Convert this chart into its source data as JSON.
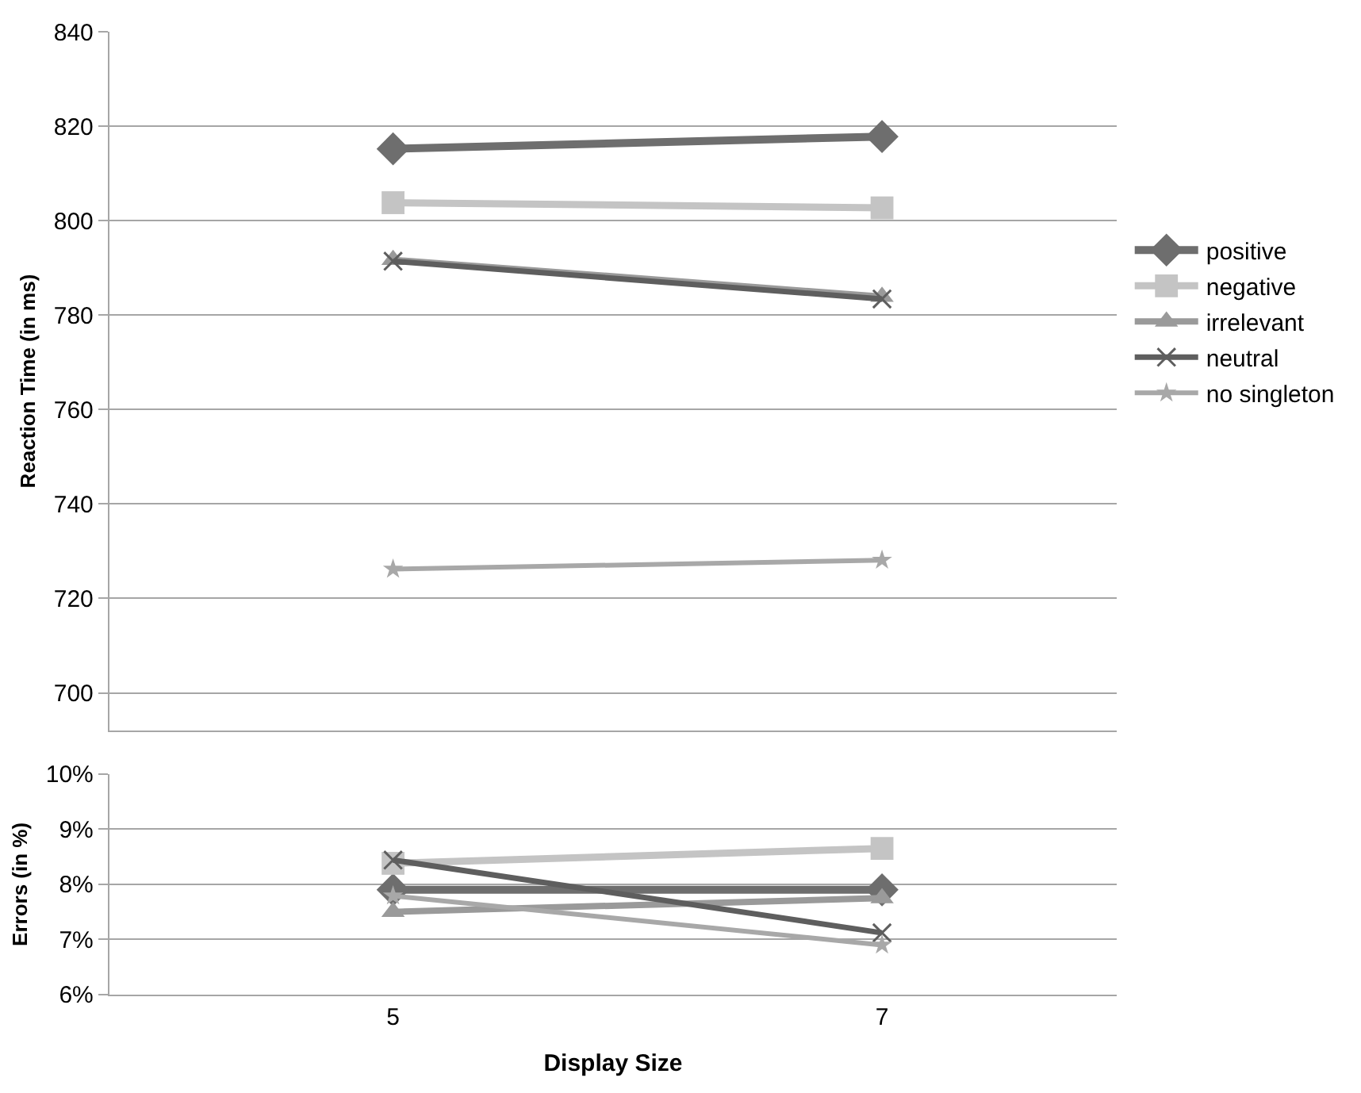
{
  "chart_data": [
    {
      "type": "line",
      "ylabel": "Reaction Time (in ms)",
      "categories": [
        "5",
        "7"
      ],
      "ylim": [
        692,
        840
      ],
      "yticks": [
        700,
        720,
        740,
        760,
        780,
        800,
        820,
        840
      ],
      "grid": "y",
      "legend": "right",
      "tick_labels": "y",
      "series": [
        {
          "name": "positive",
          "color": "#6e6e6e",
          "marker": "diamond",
          "values": [
            815.2,
            817.8
          ]
        },
        {
          "name": "negative",
          "color": "#c4c4c4",
          "marker": "square",
          "values": [
            803.8,
            802.7
          ]
        },
        {
          "name": "irrelevant",
          "color": "#9a9a9a",
          "marker": "triangle",
          "values": [
            791.7,
            783.9
          ]
        },
        {
          "name": "neutral",
          "color": "#5e5e5e",
          "marker": "cross",
          "values": [
            791.4,
            783.4
          ]
        },
        {
          "name": "no singleton",
          "color": "#a8a8a8",
          "marker": "star",
          "values": [
            726.2,
            728.1
          ]
        }
      ]
    },
    {
      "type": "line",
      "ylabel": "Errors (in %)",
      "xlabel": "Display Size",
      "categories": [
        "5",
        "7"
      ],
      "ylim": [
        6,
        10
      ],
      "yticks": [
        {
          "value": 6,
          "label": "6%"
        },
        {
          "value": 7,
          "label": "7%"
        },
        {
          "value": 8,
          "label": "8%"
        },
        {
          "value": 9,
          "label": "9%"
        },
        {
          "value": 10,
          "label": "10%"
        }
      ],
      "grid": "y",
      "series": [
        {
          "color": "#6e6e6e",
          "marker": "diamond",
          "values": [
            7.9,
            7.9
          ]
        },
        {
          "color": "#c4c4c4",
          "marker": "square",
          "values": [
            8.38,
            8.65
          ]
        },
        {
          "color": "#9a9a9a",
          "marker": "triangle",
          "values": [
            7.5,
            7.75
          ]
        },
        {
          "color": "#5e5e5e",
          "marker": "cross",
          "values": [
            8.44,
            7.12
          ]
        },
        {
          "color": "#a8a8a8",
          "marker": "star",
          "values": [
            7.79,
            6.9
          ]
        }
      ]
    }
  ]
}
